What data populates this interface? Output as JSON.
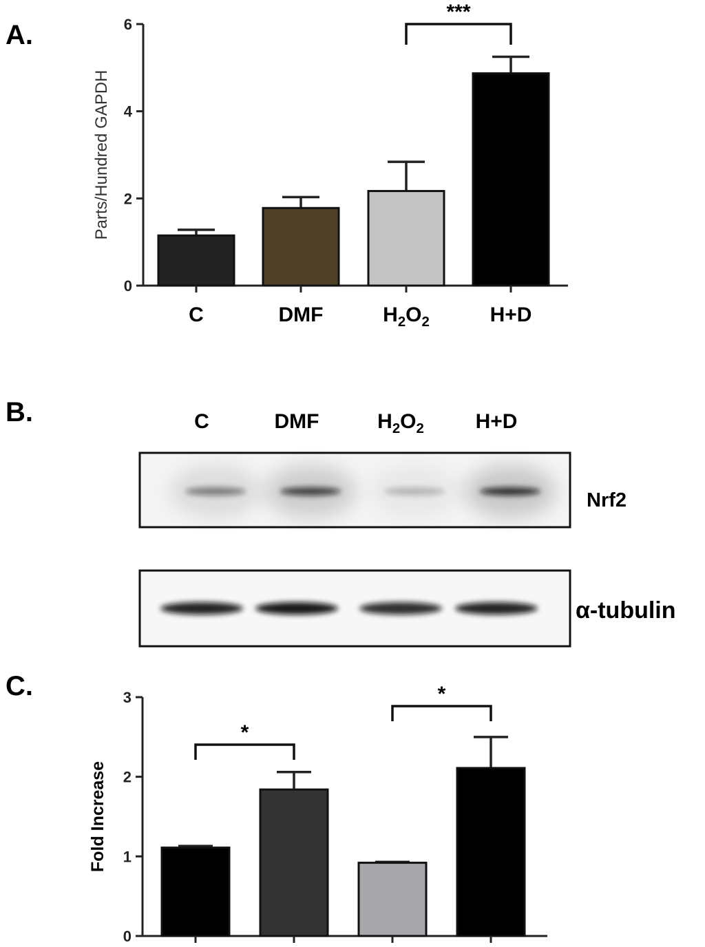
{
  "panels": {
    "a": {
      "letter": "A."
    },
    "b": {
      "letter": "B."
    },
    "c": {
      "letter": "C."
    }
  },
  "blot": {
    "lane_labels": [
      {
        "main": "C"
      },
      {
        "main": "DMF"
      },
      {
        "main": "H",
        "sub1": "2",
        "mid": "O",
        "sub2": "2"
      },
      {
        "main": "H+D"
      }
    ],
    "bands": [
      {
        "label": "Nrf2",
        "intensities": [
          0.45,
          0.72,
          0.22,
          0.8
        ]
      },
      {
        "label": "α-tubulin",
        "intensities": [
          0.9,
          0.95,
          0.85,
          0.9
        ]
      }
    ]
  },
  "chart_data": [
    {
      "type": "bar",
      "categories": [
        "C",
        "DMF",
        "H2O2",
        "H+D"
      ],
      "category_labels": [
        {
          "main": "C"
        },
        {
          "main": "DMF"
        },
        {
          "main": "H",
          "sub1": "2",
          "mid": "O",
          "sub2": "2"
        },
        {
          "main": "H+D"
        }
      ],
      "values": [
        1.15,
        1.78,
        2.17,
        4.87
      ],
      "errors": [
        0.13,
        0.25,
        0.67,
        0.38
      ],
      "colors": [
        "#222222",
        "#4e4127",
        "#c4c4c4",
        "#000000"
      ],
      "title": "",
      "xlabel": "",
      "ylabel": "Parts/Hundred GAPDH",
      "ylim": [
        0,
        6
      ],
      "yticks": [
        0,
        2,
        4,
        6
      ],
      "grid": false,
      "significance": [
        {
          "from": 2,
          "to": 3,
          "label": "***"
        }
      ]
    },
    {
      "type": "bar",
      "categories": [
        "",
        "",
        "",
        ""
      ],
      "values": [
        1.11,
        1.84,
        0.92,
        2.11
      ],
      "errors": [
        0.02,
        0.22,
        0.01,
        0.39
      ],
      "colors": [
        "#000000",
        "#333333",
        "#a8a8ac",
        "#000000"
      ],
      "title": "",
      "xlabel": "",
      "ylabel": "Fold Increase",
      "ylim": [
        0,
        3
      ],
      "yticks": [
        0,
        1,
        2,
        3
      ],
      "grid": false,
      "significance": [
        {
          "from": 0,
          "to": 1,
          "label": "*"
        },
        {
          "from": 2,
          "to": 3,
          "label": "*"
        }
      ]
    }
  ]
}
